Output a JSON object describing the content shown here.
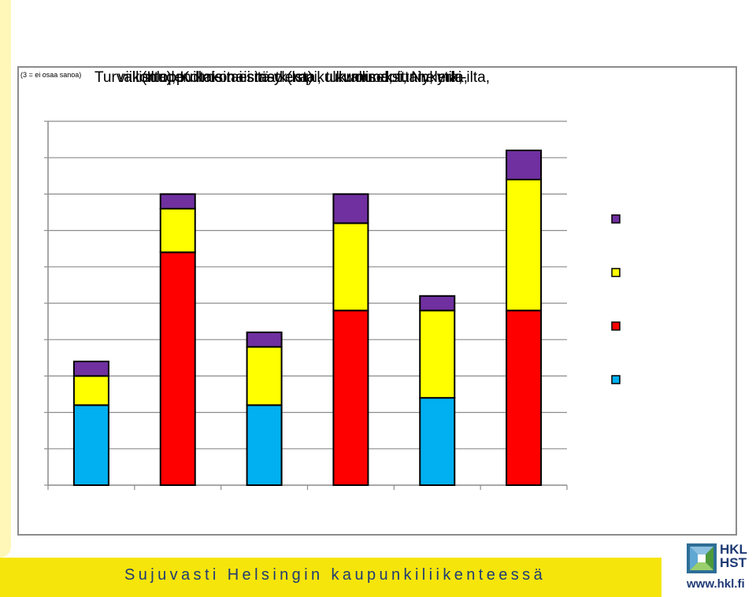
{
  "slide": {
    "tagline": "Sujuvasti Helsingin kaupunkiliikenteessä",
    "logo_line1": "HKL",
    "logo_line2": "HST",
    "logo_url": "www.hkl.fi"
  },
  "title_fragments": [
    "Turvallisuuden kokonaistaso (ka) kulkumuodoittain, erki-ilta,",
    "(Ilta), Kolme tai sitä ylempi, turvalliseksi, Nykytila,",
    "kuorma, tunnelma,",
    "viikonloppuiltaisin ei matkusta"
  ],
  "title_small": "(3 = ei osaa sanoa)",
  "colors": {
    "blue": "#00b0f0",
    "red": "#ff0000",
    "yellow": "#ffff00",
    "purple": "#7030a0",
    "grid": "#8c8c8c"
  },
  "chart_data": {
    "type": "bar",
    "stacked": true,
    "categories": [
      "",
      "",
      "",
      "",
      "",
      ""
    ],
    "ylim": [
      0,
      10
    ],
    "grid": true,
    "legend": "right",
    "series": [
      {
        "color": "#00b0f0",
        "values": [
          2.2,
          0,
          2.2,
          0,
          2.4,
          0
        ]
      },
      {
        "color": "#ff0000",
        "values": [
          0,
          6.4,
          0,
          4.8,
          0,
          4.8
        ]
      },
      {
        "color": "#ffff00",
        "values": [
          0.8,
          1.2,
          1.6,
          2.4,
          2.4,
          3.6
        ]
      },
      {
        "color": "#7030a0",
        "values": [
          0.4,
          0.4,
          0.4,
          0.8,
          0.4,
          0.8
        ]
      }
    ]
  }
}
